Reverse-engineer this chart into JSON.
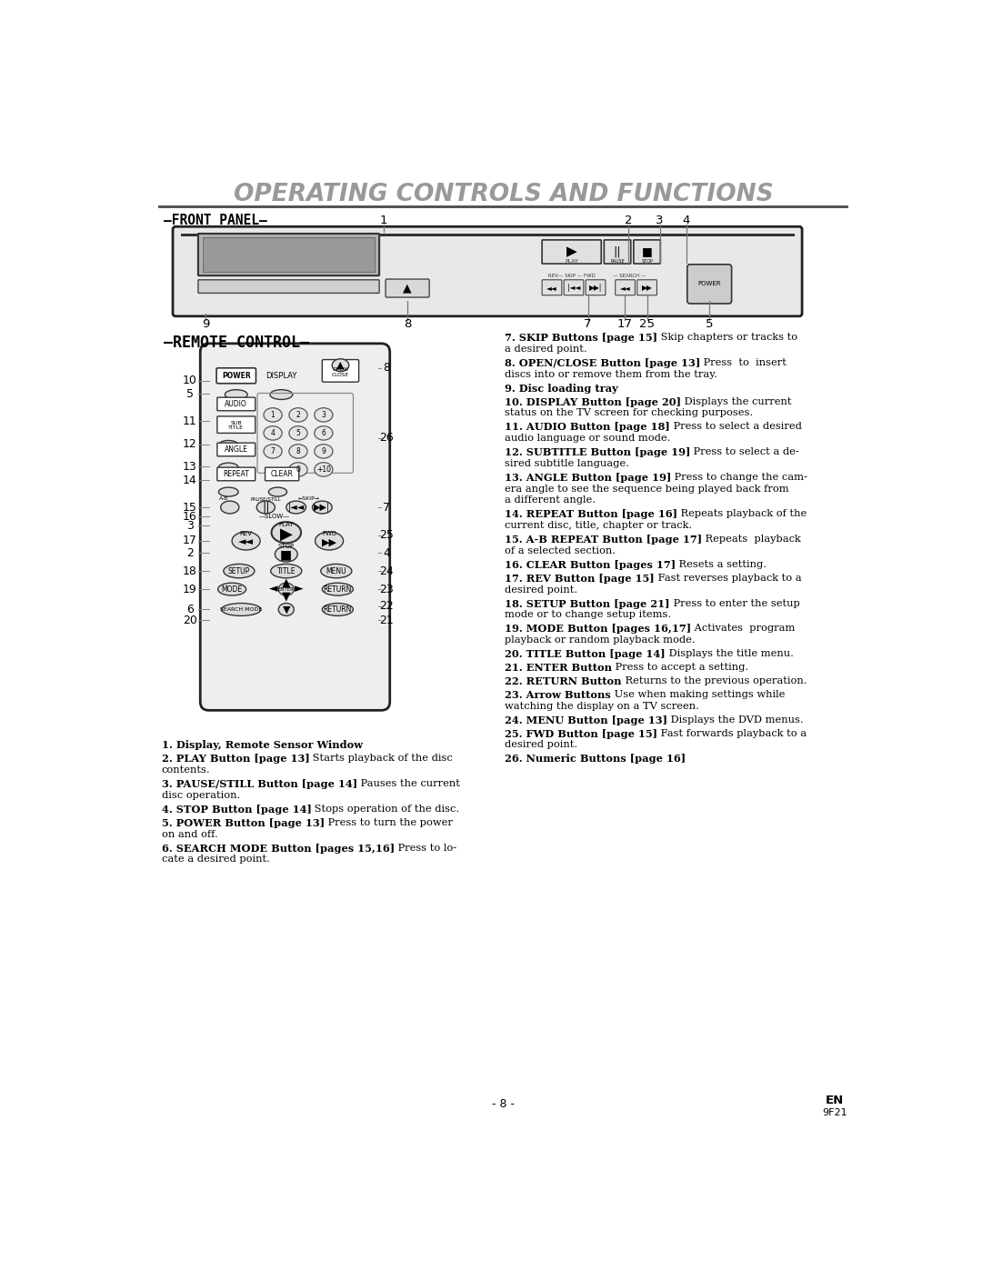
{
  "title": "OPERATING CONTROLS AND FUNCTIONS",
  "bg_color": "#ffffff",
  "title_color": "#999999",
  "front_panel_label": "—FRONT PANEL—",
  "remote_control_label": "—REMOTE CONTROL—",
  "page_num": "- 8 -",
  "page_en": "EN",
  "page_code": "9F21",
  "right_col_entries": [
    {
      "num": "7.",
      "bold": " SKIP Buttons [page 15]",
      "normal": " Skip chapters or tracks to\n    a desired point."
    },
    {
      "num": "8.",
      "bold": " OPEN/CLOSE Button [page 13]",
      "normal": " Press  to  insert\n    discs into or remove them from the tray."
    },
    {
      "num": "9.",
      "bold": " Disc loading tray",
      "normal": ""
    },
    {
      "num": "10.",
      "bold": " DISPLAY Button [page 20]",
      "normal": " Displays the current\n    status on the TV screen for checking purposes."
    },
    {
      "num": "11.",
      "bold": " AUDIO Button [page 18]",
      "normal": " Press to select a desired\n    audio language or sound mode."
    },
    {
      "num": "12.",
      "bold": " SUBTITLE Button [page 19]",
      "normal": " Press to select a de-\n    sired subtitle language."
    },
    {
      "num": "13.",
      "bold": " ANGLE Button [page 19]",
      "normal": " Press to change the cam-\n    era angle to see the sequence being played back from\n    a different angle."
    },
    {
      "num": "14.",
      "bold": " REPEAT Button [page 16]",
      "normal": " Repeats playback of the\n    current disc, title, chapter or track."
    },
    {
      "num": "15.",
      "bold": " A-B REPEAT Button [page 17]",
      "normal": " Repeats  playback\n    of a selected section."
    },
    {
      "num": "16.",
      "bold": " CLEAR Button [pages 17]",
      "normal": " Resets a setting."
    },
    {
      "num": "17.",
      "bold": " REV Button [page 15]",
      "normal": " Fast reverses playback to a\n    desired point."
    },
    {
      "num": "18.",
      "bold": " SETUP Button [page 21]",
      "normal": " Press to enter the setup\n    mode or to change setup items."
    },
    {
      "num": "19.",
      "bold": " MODE Button [pages 16,17]",
      "normal": " Activates  program\n    playback or random playback mode."
    },
    {
      "num": "20.",
      "bold": " TITLE Button [page 14]",
      "normal": " Displays the title menu."
    },
    {
      "num": "21.",
      "bold": " ENTER Button",
      "normal": " Press to accept a setting."
    },
    {
      "num": "22.",
      "bold": " RETURN Button",
      "normal": " Returns to the previous operation."
    },
    {
      "num": "23.",
      "bold": " Arrow Buttons",
      "normal": " Use when making settings while\n    watching the display on a TV screen."
    },
    {
      "num": "24.",
      "bold": " MENU Button [page 13]",
      "normal": " Displays the DVD menus."
    },
    {
      "num": "25.",
      "bold": " FWD Button [page 15]",
      "normal": " Fast forwards playback to a\n    desired point."
    },
    {
      "num": "26.",
      "bold": " Numeric Buttons [page 16]",
      "normal": ""
    }
  ],
  "left_col_entries": [
    {
      "num": "1.",
      "bold": " Display, Remote Sensor Window",
      "normal": ""
    },
    {
      "num": "2.",
      "bold": " PLAY Button [page 13]",
      "normal": " Starts playback of the disc\n    contents."
    },
    {
      "num": "3.",
      "bold": " PAUSE/STILL Button [page 14]",
      "normal": " Pauses the current\n    disc operation."
    },
    {
      "num": "4.",
      "bold": " STOP Button [page 14]",
      "normal": " Stops operation of the disc."
    },
    {
      "num": "5.",
      "bold": " POWER Button [page 13]",
      "normal": " Press to turn the power\n    on and off."
    },
    {
      "num": "6.",
      "bold": " SEARCH MODE Button [pages 15,16]",
      "normal": " Press to lo-\n    cate a desired point."
    }
  ]
}
